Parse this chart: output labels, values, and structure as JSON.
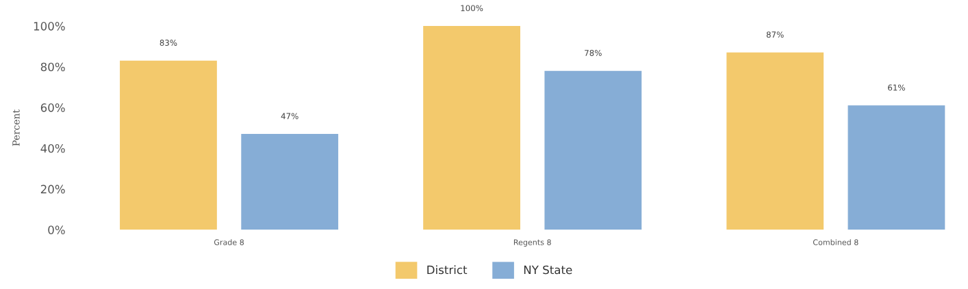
{
  "chart_data": {
    "type": "bar",
    "ylabel": "Percent",
    "categories": [
      "Grade 8",
      "Regents 8",
      "Combined 8"
    ],
    "series": [
      {
        "name": "District",
        "color": "#f3c96c",
        "values": [
          83,
          100,
          87
        ],
        "value_labels": [
          "83%",
          "100%",
          "87%"
        ]
      },
      {
        "name": "NY State",
        "color": "#86add6",
        "values": [
          47,
          78,
          61
        ],
        "value_labels": [
          "47%",
          "78%",
          "61%"
        ]
      }
    ],
    "ylim": [
      0,
      100
    ],
    "yticks": [
      {
        "value": 0,
        "label": "0%"
      },
      {
        "value": 20,
        "label": "20%"
      },
      {
        "value": 40,
        "label": "40%"
      },
      {
        "value": 60,
        "label": "60%"
      },
      {
        "value": 80,
        "label": "80%"
      },
      {
        "value": 100,
        "label": "100%"
      }
    ],
    "grid": false,
    "legend": "bottom"
  }
}
